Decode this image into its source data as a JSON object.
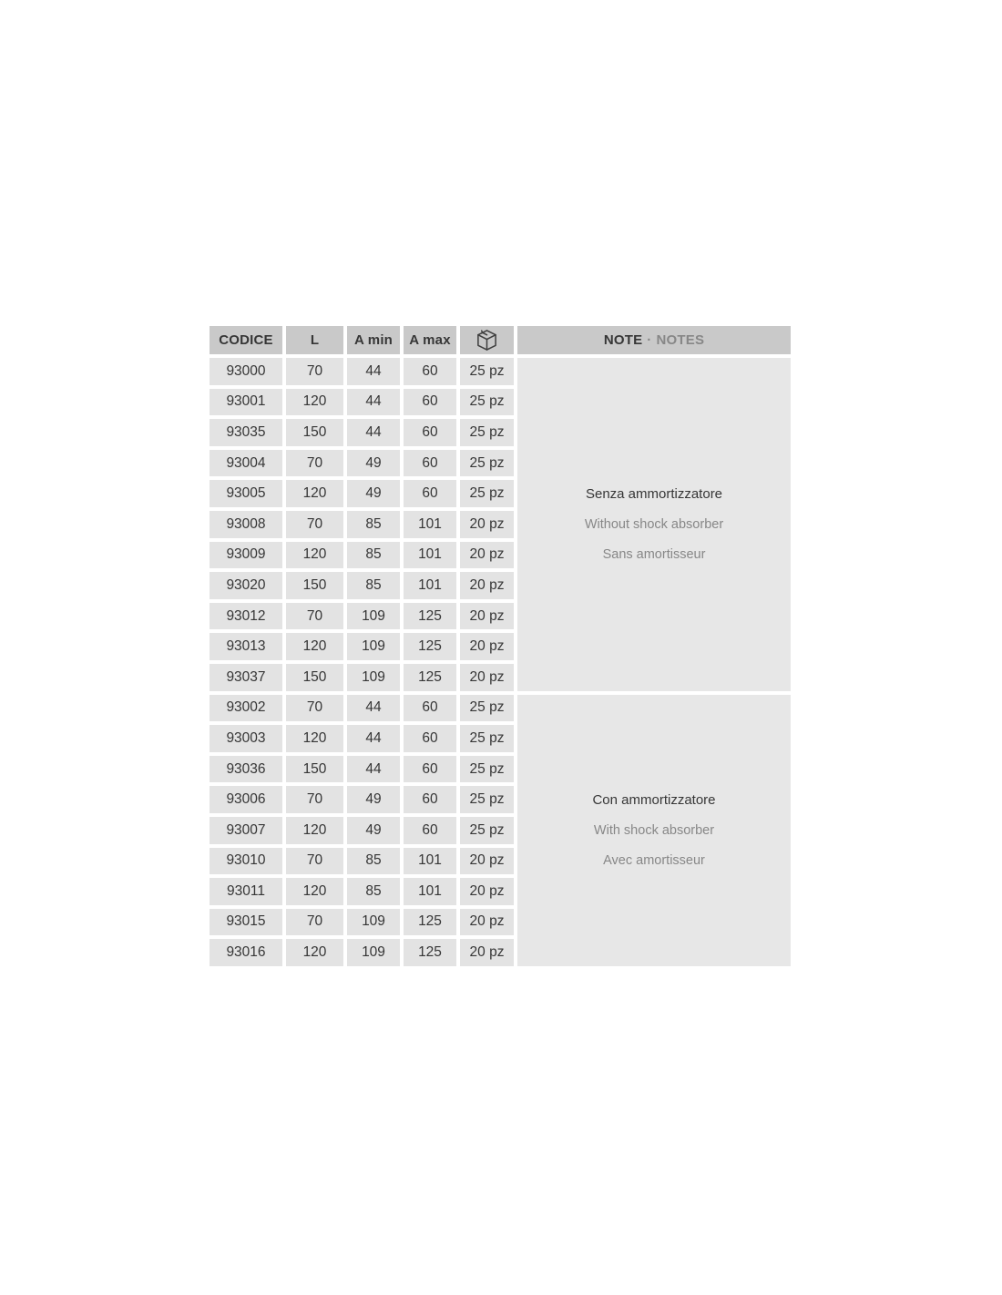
{
  "colors": {
    "page_bg": "#ffffff",
    "header_bg": "#c9c9c9",
    "cell_bg": "#e3e3e3",
    "note_bg": "#e7e7e7",
    "text_dark": "#363636",
    "text_gray": "#878787"
  },
  "table": {
    "header": {
      "codice": "CODICE",
      "l": "L",
      "a_min": "A min",
      "a_max": "A max",
      "qty_icon": "package-icon",
      "note": "NOTE",
      "note_separator": "·",
      "notes": "NOTES"
    },
    "groups": [
      {
        "note": {
          "primary": "Senza ammortizzatore",
          "secondary": "Without shock absorber",
          "tertiary": "Sans amortisseur"
        },
        "rows": [
          [
            "93000",
            "70",
            "44",
            "60",
            "25 pz"
          ],
          [
            "93001",
            "120",
            "44",
            "60",
            "25 pz"
          ],
          [
            "93035",
            "150",
            "44",
            "60",
            "25 pz"
          ],
          [
            "93004",
            "70",
            "49",
            "60",
            "25 pz"
          ],
          [
            "93005",
            "120",
            "49",
            "60",
            "25 pz"
          ],
          [
            "93008",
            "70",
            "85",
            "101",
            "20 pz"
          ],
          [
            "93009",
            "120",
            "85",
            "101",
            "20 pz"
          ],
          [
            "93020",
            "150",
            "85",
            "101",
            "20 pz"
          ],
          [
            "93012",
            "70",
            "109",
            "125",
            "20 pz"
          ],
          [
            "93013",
            "120",
            "109",
            "125",
            "20 pz"
          ],
          [
            "93037",
            "150",
            "109",
            "125",
            "20 pz"
          ]
        ]
      },
      {
        "note": {
          "primary": "Con ammortizzatore",
          "secondary": "With shock absorber",
          "tertiary": "Avec amortisseur"
        },
        "rows": [
          [
            "93002",
            "70",
            "44",
            "60",
            "25 pz"
          ],
          [
            "93003",
            "120",
            "44",
            "60",
            "25 pz"
          ],
          [
            "93036",
            "150",
            "44",
            "60",
            "25 pz"
          ],
          [
            "93006",
            "70",
            "49",
            "60",
            "25 pz"
          ],
          [
            "93007",
            "120",
            "49",
            "60",
            "25 pz"
          ],
          [
            "93010",
            "70",
            "85",
            "101",
            "20 pz"
          ],
          [
            "93011",
            "120",
            "85",
            "101",
            "20 pz"
          ],
          [
            "93015",
            "70",
            "109",
            "125",
            "20 pz"
          ],
          [
            "93016",
            "120",
            "109",
            "125",
            "20 pz"
          ]
        ]
      }
    ]
  }
}
